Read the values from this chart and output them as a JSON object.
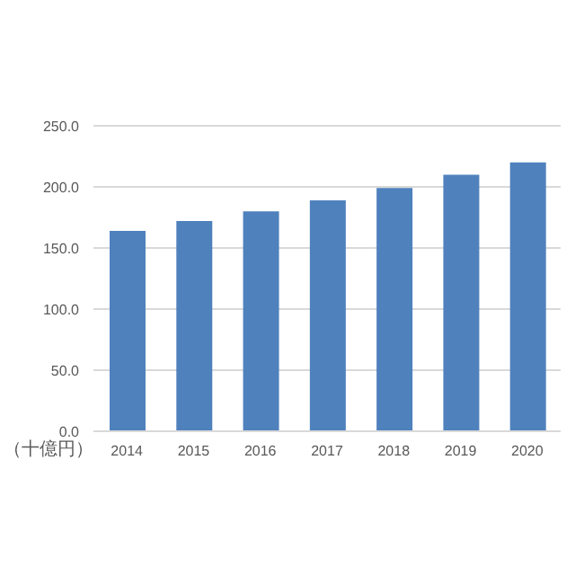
{
  "chart_data": {
    "type": "bar",
    "ylabel": "（十億円）",
    "categories": [
      "2014",
      "2015",
      "2016",
      "2017",
      "2018",
      "2019",
      "2020"
    ],
    "values": [
      164,
      172,
      180,
      189,
      199,
      210,
      220
    ],
    "color": "#4f81bd",
    "ylim": [
      0,
      250
    ],
    "yticks": [
      {
        "value": 0,
        "label": "0.0"
      },
      {
        "value": 50,
        "label": "50.0"
      },
      {
        "value": 100,
        "label": "100.0"
      },
      {
        "value": 150,
        "label": "150.0"
      },
      {
        "value": 200,
        "label": "200.0"
      },
      {
        "value": 250,
        "label": "250.0"
      }
    ],
    "grid": "y"
  }
}
